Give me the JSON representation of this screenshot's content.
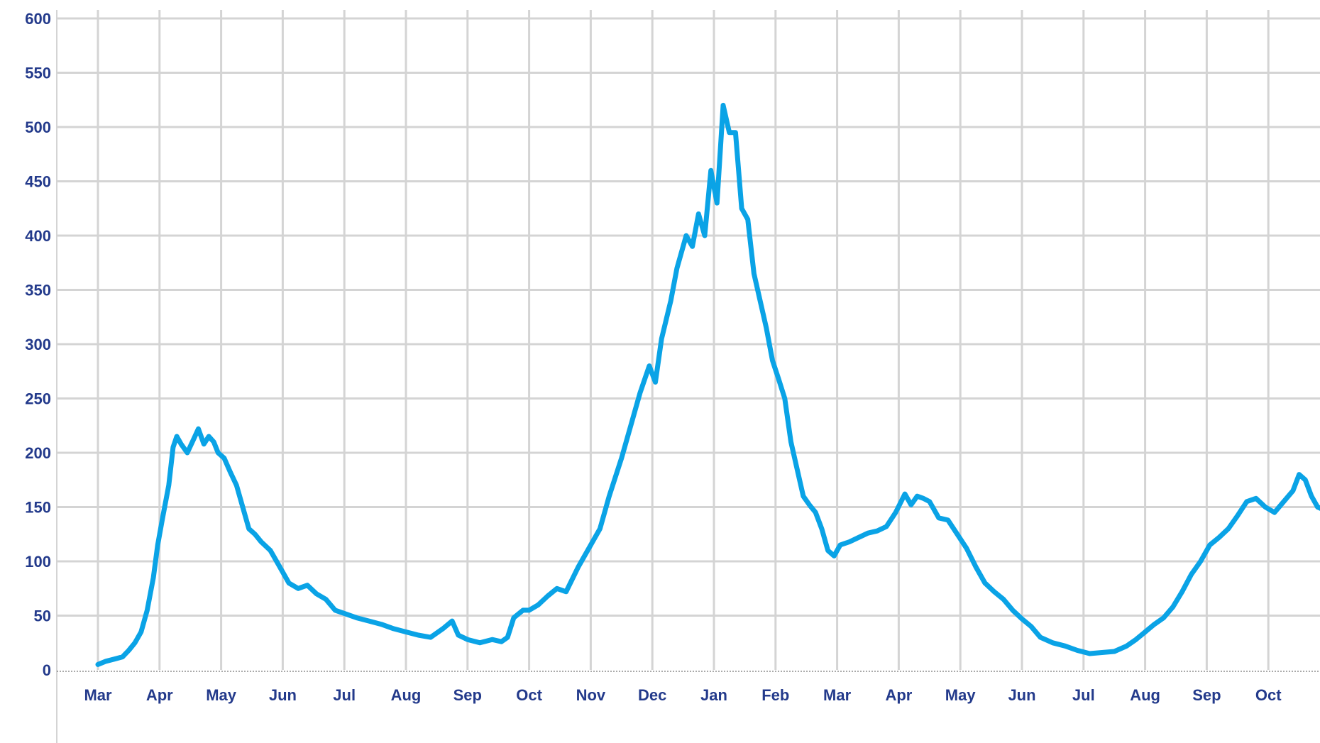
{
  "chart_data": {
    "type": "line",
    "title": "",
    "xlabel": "",
    "ylabel": "",
    "ylim": [
      0,
      600
    ],
    "y_ticks": [
      0,
      50,
      100,
      150,
      200,
      250,
      300,
      350,
      400,
      450,
      500,
      550,
      600
    ],
    "x_tick_labels": [
      "Mar",
      "Apr",
      "May",
      "Jun",
      "Jul",
      "Aug",
      "Sep",
      "Oct",
      "Nov",
      "Dec",
      "Jan",
      "Feb",
      "Mar",
      "Apr",
      "May",
      "Jun",
      "Jul",
      "Aug",
      "Sep",
      "Oct"
    ],
    "grid": true,
    "legend": "none",
    "series": [
      {
        "x_unit": "months since start of first Mar (tick index)",
        "points": [
          [
            0.0,
            5
          ],
          [
            0.13,
            8
          ],
          [
            0.27,
            10
          ],
          [
            0.4,
            12
          ],
          [
            0.5,
            18
          ],
          [
            0.6,
            25
          ],
          [
            0.7,
            35
          ],
          [
            0.8,
            55
          ],
          [
            0.9,
            85
          ],
          [
            0.97,
            115
          ],
          [
            1.05,
            140
          ],
          [
            1.15,
            170
          ],
          [
            1.22,
            205
          ],
          [
            1.28,
            215
          ],
          [
            1.35,
            208
          ],
          [
            1.45,
            200
          ],
          [
            1.55,
            212
          ],
          [
            1.63,
            222
          ],
          [
            1.72,
            208
          ],
          [
            1.8,
            215
          ],
          [
            1.88,
            210
          ],
          [
            1.95,
            200
          ],
          [
            2.05,
            195
          ],
          [
            2.15,
            182
          ],
          [
            2.25,
            170
          ],
          [
            2.35,
            150
          ],
          [
            2.45,
            130
          ],
          [
            2.55,
            125
          ],
          [
            2.65,
            118
          ],
          [
            2.8,
            110
          ],
          [
            2.95,
            95
          ],
          [
            3.1,
            80
          ],
          [
            3.25,
            75
          ],
          [
            3.4,
            78
          ],
          [
            3.55,
            70
          ],
          [
            3.7,
            65
          ],
          [
            3.85,
            55
          ],
          [
            4.0,
            52
          ],
          [
            4.2,
            48
          ],
          [
            4.4,
            45
          ],
          [
            4.6,
            42
          ],
          [
            4.8,
            38
          ],
          [
            5.0,
            35
          ],
          [
            5.2,
            32
          ],
          [
            5.4,
            30
          ],
          [
            5.6,
            38
          ],
          [
            5.75,
            45
          ],
          [
            5.85,
            32
          ],
          [
            6.0,
            28
          ],
          [
            6.2,
            25
          ],
          [
            6.4,
            28
          ],
          [
            6.55,
            26
          ],
          [
            6.65,
            30
          ],
          [
            6.75,
            48
          ],
          [
            6.9,
            55
          ],
          [
            7.0,
            55
          ],
          [
            7.15,
            60
          ],
          [
            7.3,
            68
          ],
          [
            7.45,
            75
          ],
          [
            7.6,
            72
          ],
          [
            7.8,
            95
          ],
          [
            8.0,
            115
          ],
          [
            8.15,
            130
          ],
          [
            8.3,
            160
          ],
          [
            8.5,
            195
          ],
          [
            8.65,
            225
          ],
          [
            8.8,
            255
          ],
          [
            8.95,
            280
          ],
          [
            9.05,
            265
          ],
          [
            9.15,
            305
          ],
          [
            9.3,
            340
          ],
          [
            9.4,
            370
          ],
          [
            9.55,
            400
          ],
          [
            9.65,
            390
          ],
          [
            9.75,
            420
          ],
          [
            9.85,
            400
          ],
          [
            9.95,
            460
          ],
          [
            10.05,
            430
          ],
          [
            10.15,
            520
          ],
          [
            10.25,
            495
          ],
          [
            10.35,
            495
          ],
          [
            10.45,
            425
          ],
          [
            10.55,
            415
          ],
          [
            10.65,
            365
          ],
          [
            10.75,
            340
          ],
          [
            10.85,
            315
          ],
          [
            10.95,
            285
          ],
          [
            11.05,
            268
          ],
          [
            11.15,
            250
          ],
          [
            11.25,
            210
          ],
          [
            11.35,
            185
          ],
          [
            11.45,
            160
          ],
          [
            11.55,
            152
          ],
          [
            11.65,
            145
          ],
          [
            11.75,
            130
          ],
          [
            11.85,
            110
          ],
          [
            11.95,
            105
          ],
          [
            12.05,
            115
          ],
          [
            12.2,
            118
          ],
          [
            12.35,
            122
          ],
          [
            12.5,
            126
          ],
          [
            12.65,
            128
          ],
          [
            12.8,
            132
          ],
          [
            12.95,
            145
          ],
          [
            13.1,
            162
          ],
          [
            13.2,
            152
          ],
          [
            13.3,
            160
          ],
          [
            13.4,
            158
          ],
          [
            13.5,
            155
          ],
          [
            13.65,
            140
          ],
          [
            13.8,
            138
          ],
          [
            13.95,
            125
          ],
          [
            14.1,
            112
          ],
          [
            14.25,
            95
          ],
          [
            14.4,
            80
          ],
          [
            14.55,
            72
          ],
          [
            14.7,
            65
          ],
          [
            14.85,
            55
          ],
          [
            15.0,
            47
          ],
          [
            15.15,
            40
          ],
          [
            15.3,
            30
          ],
          [
            15.5,
            25
          ],
          [
            15.7,
            22
          ],
          [
            15.9,
            18
          ],
          [
            16.1,
            15
          ],
          [
            16.3,
            16
          ],
          [
            16.5,
            17
          ],
          [
            16.7,
            22
          ],
          [
            16.85,
            28
          ],
          [
            17.0,
            35
          ],
          [
            17.15,
            42
          ],
          [
            17.3,
            48
          ],
          [
            17.45,
            58
          ],
          [
            17.6,
            72
          ],
          [
            17.75,
            88
          ],
          [
            17.9,
            100
          ],
          [
            18.05,
            115
          ],
          [
            18.2,
            122
          ],
          [
            18.35,
            130
          ],
          [
            18.5,
            142
          ],
          [
            18.65,
            155
          ],
          [
            18.8,
            158
          ],
          [
            18.95,
            150
          ],
          [
            19.1,
            145
          ],
          [
            19.25,
            155
          ],
          [
            19.4,
            165
          ],
          [
            19.5,
            180
          ],
          [
            19.6,
            175
          ],
          [
            19.7,
            160
          ],
          [
            19.8,
            150
          ],
          [
            19.88,
            148
          ]
        ]
      }
    ]
  },
  "colors": {
    "line": "#0aa3e6",
    "grid": "#d4d4d4",
    "axis_text": "#233a8b"
  }
}
